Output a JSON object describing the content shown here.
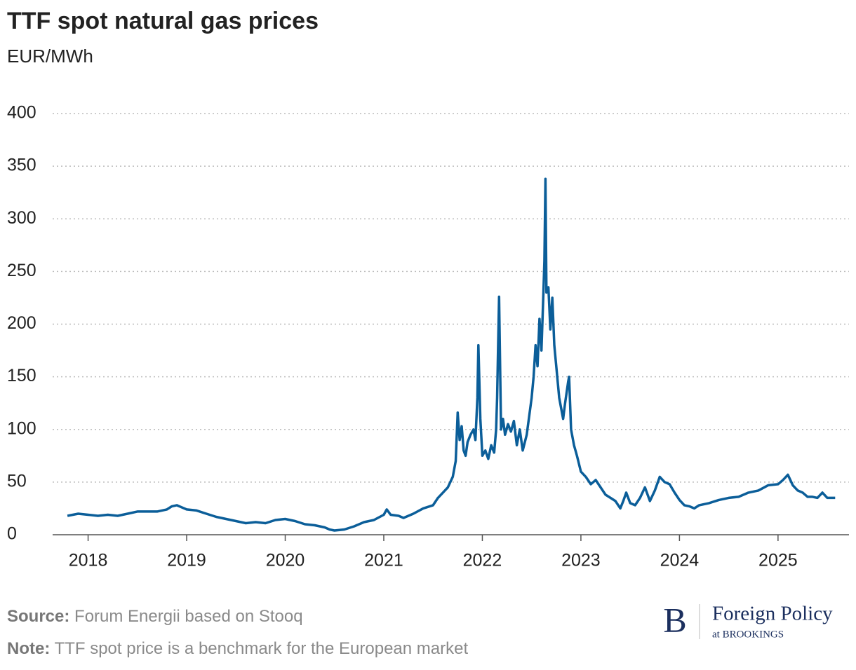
{
  "chart_data": {
    "type": "line",
    "title": "TTF spot natural gas prices",
    "subtitle": "EUR/MWh",
    "x": [
      2017.79,
      2017.9,
      2018.0,
      2018.1,
      2018.2,
      2018.3,
      2018.4,
      2018.5,
      2018.6,
      2018.7,
      2018.8,
      2018.85,
      2018.9,
      2019.0,
      2019.1,
      2019.2,
      2019.3,
      2019.4,
      2019.5,
      2019.6,
      2019.7,
      2019.8,
      2019.9,
      2020.0,
      2020.1,
      2020.2,
      2020.3,
      2020.4,
      2020.45,
      2020.5,
      2020.6,
      2020.7,
      2020.8,
      2020.9,
      2021.0,
      2021.03,
      2021.07,
      2021.15,
      2021.2,
      2021.3,
      2021.4,
      2021.5,
      2021.55,
      2021.6,
      2021.65,
      2021.7,
      2021.73,
      2021.75,
      2021.77,
      2021.79,
      2021.81,
      2021.83,
      2021.85,
      2021.88,
      2021.91,
      2021.93,
      2021.95,
      2021.96,
      2021.98,
      2022.0,
      2022.03,
      2022.06,
      2022.09,
      2022.12,
      2022.14,
      2022.15,
      2022.17,
      2022.19,
      2022.21,
      2022.23,
      2022.26,
      2022.29,
      2022.32,
      2022.35,
      2022.38,
      2022.41,
      2022.45,
      2022.5,
      2022.52,
      2022.54,
      2022.56,
      2022.58,
      2022.6,
      2022.62,
      2022.63,
      2022.64,
      2022.65,
      2022.67,
      2022.69,
      2022.71,
      2022.73,
      2022.75,
      2022.78,
      2022.8,
      2022.82,
      2022.84,
      2022.87,
      2022.88,
      2022.9,
      2022.93,
      2022.96,
      2023.0,
      2023.05,
      2023.1,
      2023.15,
      2023.2,
      2023.25,
      2023.3,
      2023.35,
      2023.4,
      2023.43,
      2023.46,
      2023.5,
      2023.55,
      2023.6,
      2023.65,
      2023.7,
      2023.75,
      2023.8,
      2023.85,
      2023.9,
      2023.95,
      2024.0,
      2024.05,
      2024.1,
      2024.15,
      2024.2,
      2024.3,
      2024.4,
      2024.5,
      2024.6,
      2024.7,
      2024.8,
      2024.9,
      2025.0,
      2025.05,
      2025.1,
      2025.15,
      2025.2,
      2025.25,
      2025.3,
      2025.35,
      2025.4,
      2025.45,
      2025.5,
      2025.58
    ],
    "series": [
      {
        "name": "TTF spot price",
        "color": "#0b5e99",
        "values": [
          18,
          20,
          19,
          18,
          19,
          18,
          20,
          22,
          22,
          22,
          24,
          27,
          28,
          24,
          23,
          20,
          17,
          15,
          13,
          11,
          12,
          11,
          14,
          15,
          13,
          10,
          9,
          7,
          5,
          4,
          5,
          8,
          12,
          14,
          19,
          24,
          19,
          18,
          16,
          20,
          25,
          28,
          35,
          40,
          45,
          55,
          70,
          116,
          90,
          103,
          80,
          75,
          88,
          95,
          100,
          90,
          130,
          180,
          110,
          75,
          80,
          72,
          85,
          78,
          100,
          130,
          226,
          100,
          110,
          95,
          105,
          98,
          108,
          85,
          100,
          80,
          95,
          130,
          150,
          180,
          160,
          205,
          175,
          230,
          260,
          338,
          230,
          235,
          195,
          225,
          180,
          160,
          130,
          120,
          110,
          125,
          145,
          150,
          100,
          85,
          75,
          60,
          55,
          48,
          52,
          45,
          38,
          35,
          32,
          25,
          32,
          40,
          30,
          28,
          35,
          45,
          32,
          42,
          55,
          50,
          48,
          40,
          33,
          28,
          27,
          25,
          28,
          30,
          33,
          35,
          36,
          40,
          42,
          47,
          48,
          52,
          57,
          47,
          42,
          40,
          36,
          36,
          35,
          40,
          35,
          35
        ]
      }
    ],
    "xlim": [
      2017.64,
      2025.72
    ],
    "xticks": [
      2018,
      2019,
      2020,
      2021,
      2022,
      2023,
      2024,
      2025
    ],
    "ylim": [
      0,
      400
    ],
    "yticks": [
      0,
      50,
      100,
      150,
      200,
      250,
      300,
      350,
      400
    ],
    "grid": true,
    "source_label": "Source:",
    "source": "Forum Energii based on Stooq",
    "note_label": "Note:",
    "note": "TTF spot price is a benchmark for the European market",
    "logo_letter": "B",
    "logo_name": "Foreign Policy",
    "logo_sub": "at BROOKINGS"
  }
}
